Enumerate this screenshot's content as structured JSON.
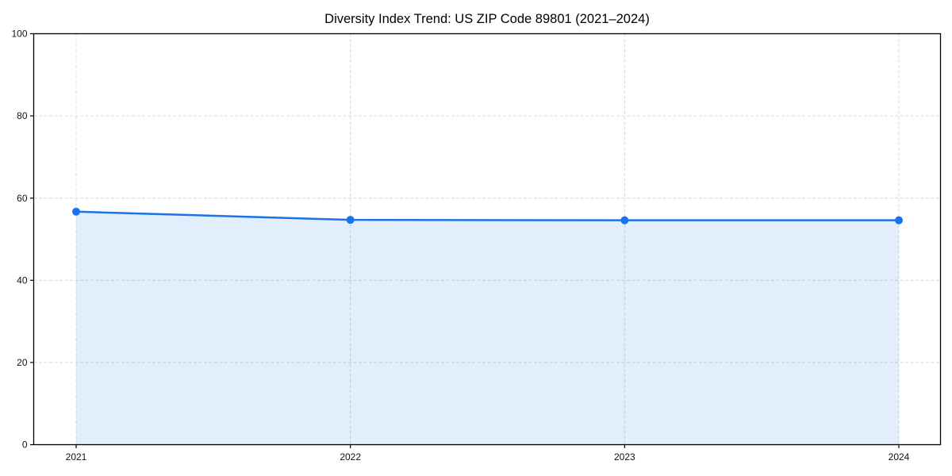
{
  "page": {
    "background": "#ffffff"
  },
  "chart_data": {
    "type": "area",
    "title": "Diversity Index Trend: US ZIP Code 89801 (2021–2024)",
    "categories": [
      "2021",
      "2022",
      "2023",
      "2024"
    ],
    "series": [
      {
        "name": "Diversity Index",
        "values": [
          56.7,
          54.7,
          54.6,
          54.6
        ]
      }
    ],
    "xlabel": "",
    "ylabel": "",
    "ylim": [
      0,
      100
    ],
    "yticks": [
      0,
      20,
      40,
      60,
      80,
      100
    ],
    "grid": true,
    "grid_style": "dashed",
    "legend": "none",
    "markers": "circle",
    "colors": {
      "line": "#1a73e8",
      "marker": "#1a73e8",
      "fill": "rgba(26,115,232,0.12)",
      "grid": "#d9d9d9",
      "spine": "#000000",
      "text": "#000000",
      "background": "#ffffff"
    }
  }
}
